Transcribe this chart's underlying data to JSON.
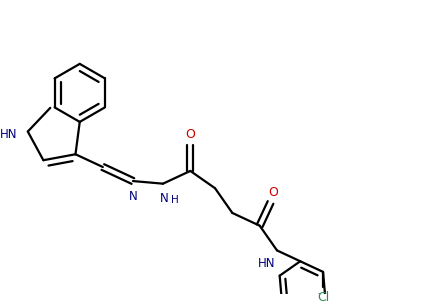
{
  "bg_color": "#ffffff",
  "line_color": "#000000",
  "bond_lw": 1.6,
  "figsize": [
    4.26,
    3.08
  ],
  "dpi": 100,
  "xlim": [
    0,
    10.5
  ],
  "ylim": [
    0,
    7.5
  ]
}
